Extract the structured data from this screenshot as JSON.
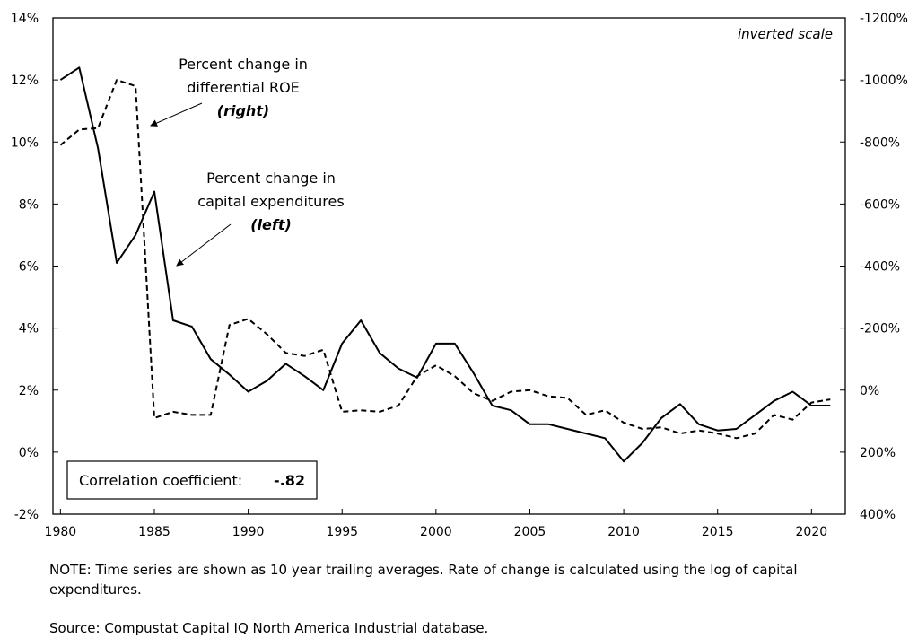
{
  "chart_data": {
    "type": "line",
    "inverted_label": "inverted scale",
    "left_axis": {
      "ylim": [
        -2,
        14
      ],
      "ticks": [
        "-2%",
        "0%",
        "2%",
        "4%",
        "6%",
        "8%",
        "10%",
        "12%",
        "14%"
      ]
    },
    "right_axis": {
      "ylim": [
        400,
        -1200
      ],
      "inverted": true,
      "ticks": [
        "400%",
        "200%",
        "0%",
        "-200%",
        "-400%",
        "-600%",
        "-800%",
        "-1000%",
        "-1200%"
      ]
    },
    "xlim": [
      1979.6,
      2021.8
    ],
    "x_ticks": [
      "1980",
      "1985",
      "1990",
      "1995",
      "2000",
      "2005",
      "2010",
      "2015",
      "2020"
    ],
    "series": [
      {
        "name": "Percent change in capital expenditures",
        "axis": "left",
        "style": "solid",
        "x": [
          1980,
          1981,
          1982,
          1983,
          1984,
          1985,
          1986,
          1987,
          1988,
          1989,
          1990,
          1991,
          1992,
          1993,
          1994,
          1995,
          1996,
          1997,
          1998,
          1999,
          2000,
          2001,
          2002,
          2003,
          2004,
          2005,
          2006,
          2007,
          2008,
          2009,
          2010,
          2011,
          2012,
          2013,
          2014,
          2015,
          2016,
          2017,
          2018,
          2019,
          2020,
          2021
        ],
        "values": [
          12.0,
          12.4,
          9.8,
          6.1,
          7.0,
          8.4,
          4.25,
          4.05,
          3.0,
          2.5,
          1.95,
          2.3,
          2.85,
          2.45,
          2.0,
          3.5,
          4.25,
          3.2,
          2.7,
          2.4,
          3.5,
          3.5,
          2.55,
          1.5,
          1.35,
          0.9,
          0.9,
          0.75,
          0.6,
          0.45,
          -0.3,
          0.3,
          1.1,
          1.55,
          0.9,
          0.7,
          0.75,
          1.2,
          1.65,
          1.95,
          1.5,
          1.5
        ]
      },
      {
        "name": "Percent change in differential ROE",
        "axis": "right",
        "style": "dashed",
        "x": [
          1980,
          1981,
          1982,
          1983,
          1984,
          1985,
          1986,
          1987,
          1988,
          1989,
          1990,
          1991,
          1992,
          1993,
          1994,
          1995,
          1996,
          1997,
          1998,
          1999,
          2000,
          2001,
          2002,
          2003,
          2004,
          2005,
          2006,
          2007,
          2008,
          2009,
          2010,
          2011,
          2012,
          2013,
          2014,
          2015,
          2016,
          2017,
          2018,
          2019,
          2020,
          2021
        ],
        "values": [
          -790,
          -840,
          -845,
          -1000,
          -980,
          90,
          70,
          80,
          80,
          -210,
          -230,
          -180,
          -120,
          -110,
          -130,
          70,
          65,
          70,
          50,
          -45,
          -80,
          -45,
          10,
          35,
          5,
          0,
          20,
          25,
          80,
          65,
          105,
          125,
          120,
          140,
          130,
          140,
          155,
          140,
          80,
          95,
          40,
          30
        ]
      }
    ],
    "annotations": {
      "roe_line1": "Percent change in",
      "roe_line2": "differential ROE",
      "roe_line3": "(right)",
      "capex_line1": "Percent change in",
      "capex_line2": "capital expenditures",
      "capex_line3": "(left)"
    },
    "correlation_label": "Correlation coefficient:",
    "correlation_value": "-.82"
  },
  "note": "NOTE: Time series are shown as 10 year trailing averages. Rate of change is calculated using the log of capital expenditures.",
  "source": "Source: Compustat Capital IQ North America Industrial database."
}
